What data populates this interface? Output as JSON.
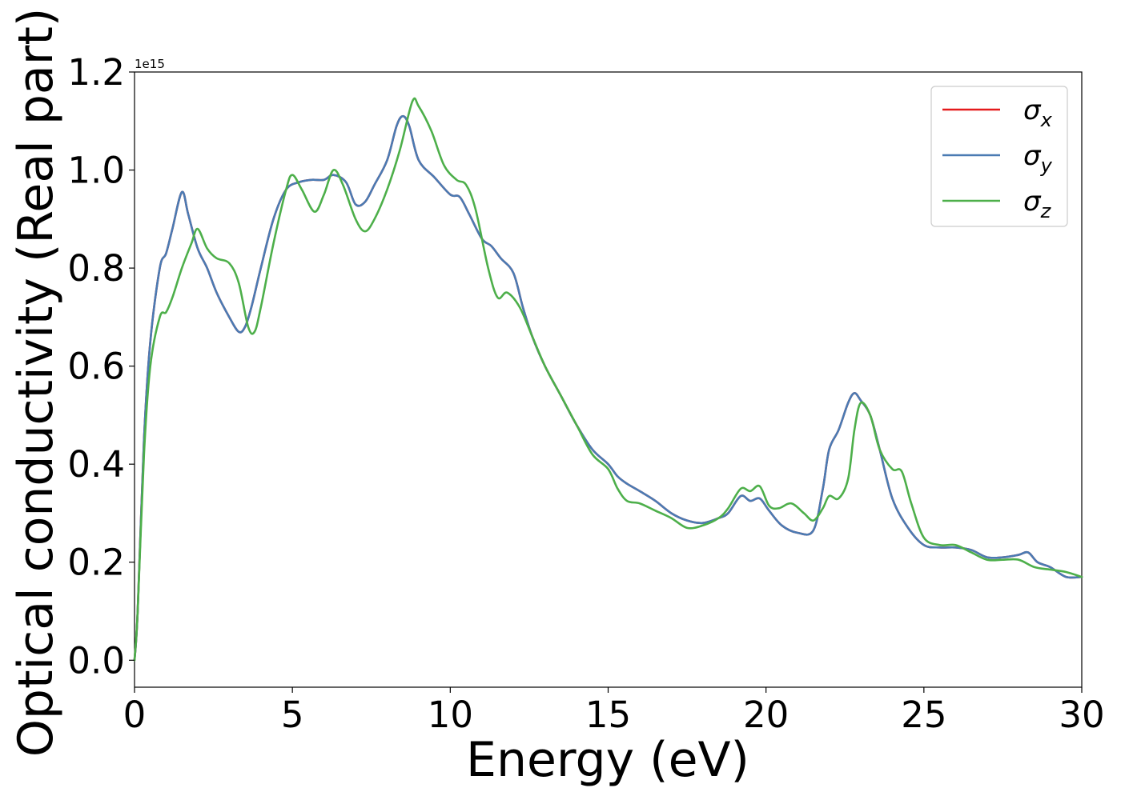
{
  "chart_data": {
    "type": "line",
    "xlabel": "Energy (eV)",
    "ylabel": "Optical conductivity (Real part)",
    "y_multiplier_label": "1e15",
    "xlim": [
      0,
      30
    ],
    "ylim": [
      -0.055,
      1.2
    ],
    "xticks": [
      0,
      5,
      10,
      15,
      20,
      25,
      30
    ],
    "xtick_labels": [
      "0",
      "5",
      "10",
      "15",
      "20",
      "25",
      "30"
    ],
    "yticks": [
      0.0,
      0.2,
      0.4,
      0.6,
      0.8,
      1.0,
      1.2
    ],
    "ytick_labels": [
      "0.0",
      "0.2",
      "0.4",
      "0.6",
      "0.8",
      "1.0",
      "1.2"
    ],
    "grid": false,
    "legend_position": "top-right",
    "series": [
      {
        "name": "σx",
        "legend_base": "σ",
        "legend_sub": "x",
        "color": "#e41a1c",
        "x": [
          0,
          0.1,
          0.3,
          0.5,
          0.8,
          1.0,
          1.2,
          1.5,
          1.7,
          2.0,
          2.3,
          2.6,
          3.0,
          3.3,
          3.5,
          3.7,
          4.0,
          4.4,
          4.8,
          5.2,
          5.6,
          6.0,
          6.3,
          6.7,
          7.0,
          7.3,
          7.6,
          8.0,
          8.3,
          8.5,
          8.7,
          9.0,
          9.5,
          10.0,
          10.3,
          10.6,
          11.0,
          11.3,
          11.6,
          12.0,
          12.3,
          12.6,
          13.0,
          13.5,
          14.0,
          14.5,
          15.0,
          15.3,
          15.6,
          16.0,
          16.5,
          17.0,
          17.5,
          18.0,
          18.5,
          18.8,
          19.2,
          19.5,
          19.8,
          20.1,
          20.5,
          21.0,
          21.5,
          21.8,
          22.0,
          22.3,
          22.6,
          22.8,
          23.0,
          23.3,
          23.6,
          24.0,
          24.5,
          25.0,
          25.5,
          26.0,
          26.5,
          27.0,
          27.5,
          28.0,
          28.3,
          28.6,
          29.0,
          29.5,
          30.0
        ],
        "values": [
          0.0,
          0.1,
          0.45,
          0.65,
          0.8,
          0.83,
          0.88,
          0.955,
          0.91,
          0.84,
          0.8,
          0.75,
          0.7,
          0.67,
          0.68,
          0.72,
          0.8,
          0.9,
          0.96,
          0.975,
          0.98,
          0.98,
          0.99,
          0.975,
          0.93,
          0.935,
          0.97,
          1.02,
          1.09,
          1.11,
          1.09,
          1.02,
          0.985,
          0.95,
          0.945,
          0.91,
          0.86,
          0.845,
          0.82,
          0.79,
          0.72,
          0.66,
          0.6,
          0.54,
          0.48,
          0.43,
          0.4,
          0.375,
          0.36,
          0.345,
          0.325,
          0.3,
          0.285,
          0.28,
          0.29,
          0.3,
          0.335,
          0.325,
          0.33,
          0.305,
          0.275,
          0.26,
          0.265,
          0.35,
          0.43,
          0.47,
          0.525,
          0.545,
          0.53,
          0.5,
          0.43,
          0.33,
          0.27,
          0.235,
          0.23,
          0.23,
          0.225,
          0.21,
          0.21,
          0.215,
          0.22,
          0.2,
          0.19,
          0.17,
          0.17
        ]
      },
      {
        "name": "σy",
        "legend_base": "σ",
        "legend_sub": "y",
        "color": "#4a7bb3",
        "x": [
          0,
          0.1,
          0.3,
          0.5,
          0.8,
          1.0,
          1.2,
          1.5,
          1.7,
          2.0,
          2.3,
          2.6,
          3.0,
          3.3,
          3.5,
          3.7,
          4.0,
          4.4,
          4.8,
          5.2,
          5.6,
          6.0,
          6.3,
          6.7,
          7.0,
          7.3,
          7.6,
          8.0,
          8.3,
          8.5,
          8.7,
          9.0,
          9.5,
          10.0,
          10.3,
          10.6,
          11.0,
          11.3,
          11.6,
          12.0,
          12.3,
          12.6,
          13.0,
          13.5,
          14.0,
          14.5,
          15.0,
          15.3,
          15.6,
          16.0,
          16.5,
          17.0,
          17.5,
          18.0,
          18.5,
          18.8,
          19.2,
          19.5,
          19.8,
          20.1,
          20.5,
          21.0,
          21.5,
          21.8,
          22.0,
          22.3,
          22.6,
          22.8,
          23.0,
          23.3,
          23.6,
          24.0,
          24.5,
          25.0,
          25.5,
          26.0,
          26.5,
          27.0,
          27.5,
          28.0,
          28.3,
          28.6,
          29.0,
          29.5,
          30.0
        ],
        "values": [
          0.0,
          0.1,
          0.45,
          0.65,
          0.8,
          0.83,
          0.88,
          0.955,
          0.91,
          0.84,
          0.8,
          0.75,
          0.7,
          0.67,
          0.68,
          0.72,
          0.8,
          0.9,
          0.96,
          0.975,
          0.98,
          0.98,
          0.99,
          0.975,
          0.93,
          0.935,
          0.97,
          1.02,
          1.09,
          1.11,
          1.09,
          1.02,
          0.985,
          0.95,
          0.945,
          0.91,
          0.86,
          0.845,
          0.82,
          0.79,
          0.72,
          0.66,
          0.6,
          0.54,
          0.48,
          0.43,
          0.4,
          0.375,
          0.36,
          0.345,
          0.325,
          0.3,
          0.285,
          0.28,
          0.29,
          0.3,
          0.335,
          0.325,
          0.33,
          0.305,
          0.275,
          0.26,
          0.265,
          0.35,
          0.43,
          0.47,
          0.525,
          0.545,
          0.53,
          0.5,
          0.43,
          0.33,
          0.27,
          0.235,
          0.23,
          0.23,
          0.225,
          0.21,
          0.21,
          0.215,
          0.22,
          0.2,
          0.19,
          0.17,
          0.17
        ]
      },
      {
        "name": "σz",
        "legend_base": "σ",
        "legend_sub": "z",
        "color": "#4daf4a",
        "x": [
          0,
          0.1,
          0.3,
          0.5,
          0.8,
          1.0,
          1.2,
          1.5,
          1.8,
          2.0,
          2.3,
          2.6,
          3.0,
          3.3,
          3.6,
          3.8,
          4.0,
          4.4,
          4.8,
          5.0,
          5.3,
          5.7,
          6.0,
          6.3,
          6.6,
          7.0,
          7.3,
          7.6,
          8.0,
          8.4,
          8.8,
          9.0,
          9.4,
          9.8,
          10.2,
          10.5,
          10.8,
          11.2,
          11.5,
          11.8,
          12.2,
          12.6,
          13.0,
          13.5,
          14.0,
          14.5,
          15.0,
          15.3,
          15.6,
          16.0,
          16.5,
          17.0,
          17.5,
          18.0,
          18.5,
          18.8,
          19.2,
          19.5,
          19.8,
          20.1,
          20.4,
          20.8,
          21.2,
          21.5,
          21.8,
          22.0,
          22.3,
          22.6,
          22.8,
          23.0,
          23.3,
          23.6,
          24.0,
          24.3,
          24.6,
          25.0,
          25.5,
          26.0,
          26.5,
          27.0,
          27.5,
          28.0,
          28.5,
          29.0,
          29.5,
          30.0
        ],
        "values": [
          0.0,
          0.1,
          0.42,
          0.6,
          0.7,
          0.71,
          0.74,
          0.8,
          0.85,
          0.88,
          0.84,
          0.82,
          0.81,
          0.77,
          0.68,
          0.67,
          0.72,
          0.85,
          0.96,
          0.99,
          0.96,
          0.915,
          0.95,
          1.0,
          0.97,
          0.9,
          0.875,
          0.9,
          0.96,
          1.04,
          1.14,
          1.13,
          1.08,
          1.01,
          0.98,
          0.97,
          0.92,
          0.8,
          0.74,
          0.75,
          0.72,
          0.66,
          0.6,
          0.54,
          0.48,
          0.42,
          0.39,
          0.35,
          0.325,
          0.32,
          0.305,
          0.29,
          0.27,
          0.275,
          0.29,
          0.31,
          0.35,
          0.345,
          0.355,
          0.315,
          0.31,
          0.32,
          0.3,
          0.285,
          0.31,
          0.335,
          0.33,
          0.37,
          0.47,
          0.525,
          0.5,
          0.43,
          0.39,
          0.385,
          0.32,
          0.25,
          0.235,
          0.235,
          0.22,
          0.205,
          0.205,
          0.205,
          0.19,
          0.185,
          0.18,
          0.17
        ]
      }
    ]
  }
}
